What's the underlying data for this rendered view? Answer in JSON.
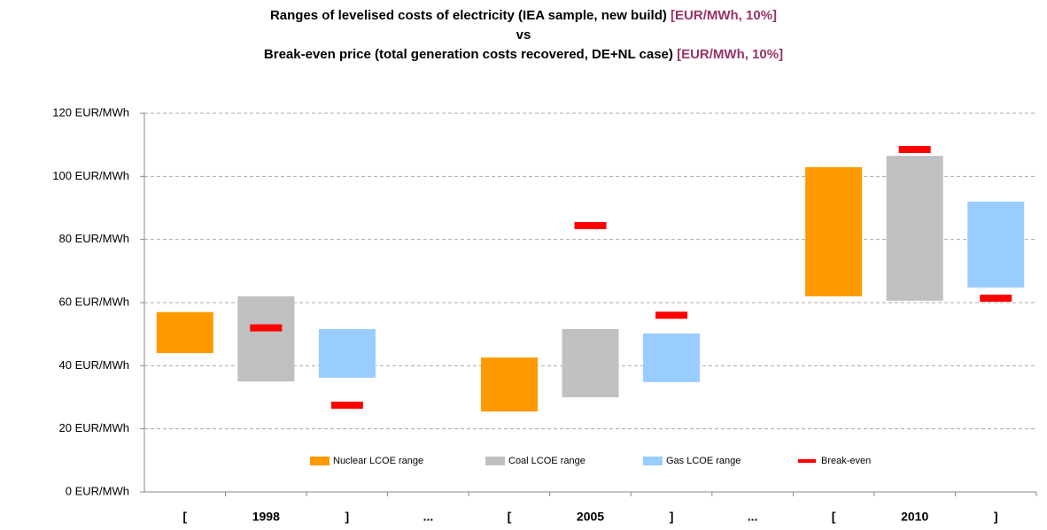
{
  "chart_data": {
    "type": "floating-bar",
    "title_lines": [
      {
        "text": "Ranges of levelised costs of electricity (IEA sample, new build)",
        "unit": "[EUR/MWh, 10%]"
      },
      {
        "text": "vs"
      },
      {
        "text": "Break-even price (total generation costs recovered, DE+NL case)",
        "unit": "[EUR/MWh, 10%]"
      }
    ],
    "categories": [
      "[",
      "1998",
      "]",
      "...",
      "[",
      "2005",
      "]",
      "...",
      "[",
      "2010",
      "]"
    ],
    "series": [
      {
        "name": "Nuclear LCOE range",
        "color": "#ff9900",
        "low": [
          44,
          null,
          null,
          null,
          25.5,
          null,
          null,
          null,
          62,
          null,
          null
        ],
        "high": [
          57,
          null,
          null,
          null,
          42.6,
          null,
          null,
          null,
          102.9,
          null,
          null
        ]
      },
      {
        "name": "Coal LCOE range",
        "color": "#c0c0c0",
        "low": [
          null,
          35,
          null,
          null,
          null,
          30,
          null,
          null,
          null,
          60.6,
          null
        ],
        "high": [
          null,
          62,
          null,
          null,
          null,
          51.6,
          null,
          null,
          null,
          106.5,
          null
        ]
      },
      {
        "name": "Gas LCOE range",
        "color": "#99ccff",
        "low": [
          null,
          null,
          36.2,
          null,
          null,
          null,
          34.8,
          null,
          null,
          null,
          64.8
        ],
        "high": [
          null,
          null,
          51.6,
          null,
          null,
          null,
          50.2,
          null,
          null,
          null,
          92
        ]
      },
      {
        "name": "Break-even",
        "color": "#ff0000",
        "values": [
          null,
          52,
          27.5,
          null,
          null,
          84.4,
          56,
          null,
          null,
          108.5,
          61.4
        ]
      }
    ],
    "ylim": [
      0,
      120
    ],
    "yticks": [
      {
        "value": 0,
        "label": "0 EUR/MWh"
      },
      {
        "value": 20,
        "label": "20 EUR/MWh"
      },
      {
        "value": 40,
        "label": "40 EUR/MWh"
      },
      {
        "value": 60,
        "label": "60 EUR/MWh"
      },
      {
        "value": 80,
        "label": "80 EUR/MWh"
      },
      {
        "value": 100,
        "label": "100 EUR/MWh"
      },
      {
        "value": 120,
        "label": "120 EUR/MWh"
      }
    ],
    "grid": true,
    "legend": "bottom"
  }
}
